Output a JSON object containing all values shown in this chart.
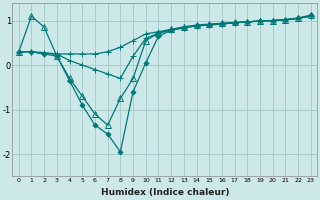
{
  "xlabel": "Humidex (Indice chaleur)",
  "ylabel": "",
  "background_color": "#cce8e8",
  "grid_color": "#aacccc",
  "line_color": "#007878",
  "xlim": [
    -0.5,
    23.5
  ],
  "ylim": [
    -2.5,
    1.4
  ],
  "xticks": [
    0,
    1,
    2,
    3,
    4,
    5,
    6,
    7,
    8,
    9,
    10,
    11,
    12,
    13,
    14,
    15,
    16,
    17,
    18,
    19,
    20,
    21,
    22,
    23
  ],
  "yticks": [
    -2,
    -1,
    0,
    1
  ],
  "series": [
    {
      "x": [
        0,
        1,
        2,
        3,
        4,
        5,
        6,
        7,
        8,
        9,
        10,
        11,
        12,
        13,
        14,
        15,
        16,
        17,
        18,
        19,
        20,
        21,
        22,
        23
      ],
      "y": [
        0.3,
        0.3,
        0.25,
        0.25,
        0.25,
        0.25,
        0.25,
        0.3,
        0.4,
        0.55,
        0.7,
        0.75,
        0.8,
        0.85,
        0.88,
        0.9,
        0.92,
        0.95,
        0.97,
        0.99,
        1.0,
        1.02,
        1.05,
        1.1
      ],
      "marker": "+",
      "markersize": 4,
      "linewidth": 0.9
    },
    {
      "x": [
        0,
        1,
        2,
        3,
        4,
        5,
        6,
        7,
        8,
        9,
        10,
        11,
        12,
        13,
        14,
        15,
        16,
        17,
        18,
        19,
        20,
        21,
        22,
        23
      ],
      "y": [
        0.3,
        0.3,
        0.28,
        0.25,
        0.1,
        0.0,
        -0.1,
        -0.2,
        -0.3,
        0.2,
        0.6,
        0.72,
        0.78,
        0.84,
        0.88,
        0.91,
        0.93,
        0.95,
        0.97,
        0.99,
        1.0,
        1.02,
        1.05,
        1.1
      ],
      "marker": "+",
      "markersize": 4,
      "linewidth": 0.9
    },
    {
      "x": [
        0,
        1,
        2,
        3,
        4,
        5,
        6,
        7,
        8,
        9,
        10,
        11,
        12,
        13,
        14,
        15,
        16,
        17,
        18,
        19,
        20,
        21,
        22,
        23
      ],
      "y": [
        0.3,
        1.1,
        0.85,
        0.2,
        -0.3,
        -0.7,
        -1.1,
        -1.35,
        -0.75,
        -0.3,
        0.55,
        0.72,
        0.8,
        0.86,
        0.9,
        0.92,
        0.94,
        0.96,
        0.97,
        0.99,
        1.0,
        1.02,
        1.06,
        1.12
      ],
      "marker": "^",
      "markersize": 4,
      "linewidth": 0.9
    },
    {
      "x": [
        0,
        1,
        2,
        3,
        4,
        5,
        6,
        7,
        8,
        9,
        10,
        11,
        12,
        13,
        14,
        15,
        16,
        17,
        18,
        19,
        20,
        21,
        22,
        23
      ],
      "y": [
        0.3,
        0.3,
        0.25,
        0.2,
        -0.35,
        -0.9,
        -1.35,
        -1.55,
        -1.95,
        -0.6,
        0.05,
        0.65,
        0.78,
        0.84,
        0.88,
        0.91,
        0.93,
        0.95,
        0.97,
        0.99,
        1.0,
        1.02,
        1.05,
        1.12
      ],
      "marker": "D",
      "markersize": 2.5,
      "linewidth": 0.9
    }
  ]
}
